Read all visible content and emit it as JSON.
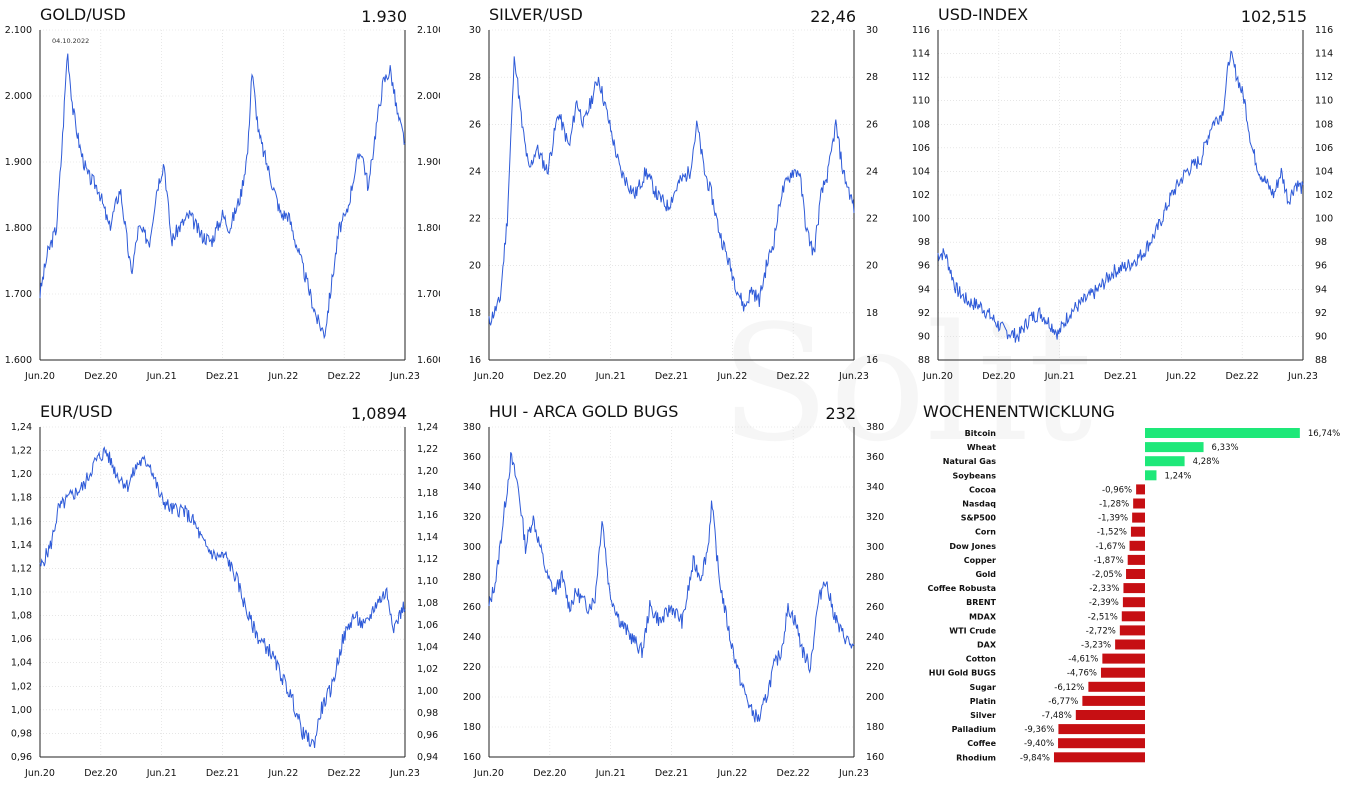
{
  "colors": {
    "line": "#2f5bd8",
    "grid": "#d8d8d8",
    "positive": "#1ee879",
    "negative": "#c60f13"
  },
  "watermark": "Solit",
  "chart_data": [
    {
      "type": "line",
      "id": "gold",
      "title": "GOLD/USD",
      "last": "1.930",
      "ylim": [
        1600,
        2100
      ],
      "yticks": [
        "1.600",
        "1.700",
        "1.800",
        "1.900",
        "2.000",
        "2.100"
      ],
      "xticks": [
        "Jun.20",
        "Dez.20",
        "Jun.21",
        "Dez.21",
        "Jun.22",
        "Dez.22",
        "Jun.23"
      ],
      "annotation": "04.10.2022",
      "anchors": [
        [
          0,
          1700
        ],
        [
          0.02,
          1760
        ],
        [
          0.045,
          1800
        ],
        [
          0.06,
          1920
        ],
        [
          0.075,
          2070
        ],
        [
          0.09,
          1980
        ],
        [
          0.11,
          1920
        ],
        [
          0.13,
          1880
        ],
        [
          0.16,
          1860
        ],
        [
          0.19,
          1800
        ],
        [
          0.22,
          1860
        ],
        [
          0.25,
          1730
        ],
        [
          0.27,
          1800
        ],
        [
          0.3,
          1780
        ],
        [
          0.32,
          1860
        ],
        [
          0.34,
          1900
        ],
        [
          0.36,
          1780
        ],
        [
          0.38,
          1800
        ],
        [
          0.41,
          1820
        ],
        [
          0.44,
          1790
        ],
        [
          0.47,
          1780
        ],
        [
          0.5,
          1820
        ],
        [
          0.52,
          1800
        ],
        [
          0.55,
          1850
        ],
        [
          0.57,
          1920
        ],
        [
          0.58,
          2040
        ],
        [
          0.6,
          1940
        ],
        [
          0.62,
          1900
        ],
        [
          0.64,
          1860
        ],
        [
          0.66,
          1820
        ],
        [
          0.68,
          1820
        ],
        [
          0.7,
          1780
        ],
        [
          0.72,
          1740
        ],
        [
          0.74,
          1700
        ],
        [
          0.76,
          1660
        ],
        [
          0.78,
          1640
        ],
        [
          0.8,
          1720
        ],
        [
          0.82,
          1800
        ],
        [
          0.84,
          1820
        ],
        [
          0.86,
          1880
        ],
        [
          0.88,
          1920
        ],
        [
          0.9,
          1860
        ],
        [
          0.92,
          1950
        ],
        [
          0.94,
          2020
        ],
        [
          0.96,
          2040
        ],
        [
          0.98,
          1970
        ],
        [
          1.0,
          1930
        ]
      ],
      "seed": 3
    },
    {
      "type": "line",
      "id": "silver",
      "title": "SILVER/USD",
      "last": "22,46",
      "ylim": [
        16,
        30
      ],
      "yticks": [
        "16",
        "18",
        "20",
        "22",
        "24",
        "26",
        "28",
        "30"
      ],
      "xticks": [
        "Jun.20",
        "Dez.20",
        "Jun.21",
        "Dez.21",
        "Jun.22",
        "Dez.22",
        "Jun.23"
      ],
      "anchors": [
        [
          0,
          17.6
        ],
        [
          0.03,
          18.5
        ],
        [
          0.05,
          22
        ],
        [
          0.07,
          29
        ],
        [
          0.09,
          26
        ],
        [
          0.11,
          24
        ],
        [
          0.13,
          25
        ],
        [
          0.16,
          24
        ],
        [
          0.19,
          26.5
        ],
        [
          0.22,
          25
        ],
        [
          0.24,
          27
        ],
        [
          0.26,
          26
        ],
        [
          0.3,
          28
        ],
        [
          0.33,
          26
        ],
        [
          0.36,
          24
        ],
        [
          0.4,
          23
        ],
        [
          0.43,
          24
        ],
        [
          0.46,
          23
        ],
        [
          0.49,
          22.5
        ],
        [
          0.52,
          23.5
        ],
        [
          0.55,
          24
        ],
        [
          0.57,
          26
        ],
        [
          0.59,
          24
        ],
        [
          0.61,
          23
        ],
        [
          0.63,
          21.5
        ],
        [
          0.65,
          20.5
        ],
        [
          0.68,
          19
        ],
        [
          0.7,
          18.2
        ],
        [
          0.72,
          19
        ],
        [
          0.74,
          18.5
        ],
        [
          0.76,
          20
        ],
        [
          0.78,
          21
        ],
        [
          0.8,
          23
        ],
        [
          0.83,
          24
        ],
        [
          0.85,
          24
        ],
        [
          0.87,
          21.5
        ],
        [
          0.89,
          20.5
        ],
        [
          0.91,
          23
        ],
        [
          0.93,
          24
        ],
        [
          0.95,
          26
        ],
        [
          0.97,
          24
        ],
        [
          1.0,
          22.46
        ]
      ],
      "seed": 11
    },
    {
      "type": "line",
      "id": "usd",
      "title": "USD-INDEX",
      "last": "102,515",
      "ylim": [
        88,
        116
      ],
      "yticks": [
        "88",
        "90",
        "92",
        "94",
        "96",
        "98",
        "100",
        "102",
        "104",
        "106",
        "108",
        "110",
        "112",
        "114",
        "116"
      ],
      "xticks": [
        "Jun.20",
        "Dez.20",
        "Jun.21",
        "Dez.21",
        "Jun.22",
        "Dez.22",
        "Jun.23"
      ],
      "anchors": [
        [
          0,
          97
        ],
        [
          0.02,
          97
        ],
        [
          0.05,
          94
        ],
        [
          0.08,
          93
        ],
        [
          0.12,
          92.5
        ],
        [
          0.15,
          91.5
        ],
        [
          0.18,
          90.5
        ],
        [
          0.22,
          90
        ],
        [
          0.25,
          91.5
        ],
        [
          0.28,
          92
        ],
        [
          0.31,
          91
        ],
        [
          0.33,
          90.2
        ],
        [
          0.36,
          92
        ],
        [
          0.4,
          93
        ],
        [
          0.44,
          94
        ],
        [
          0.48,
          95.5
        ],
        [
          0.52,
          96
        ],
        [
          0.56,
          97
        ],
        [
          0.6,
          99
        ],
        [
          0.64,
          102
        ],
        [
          0.68,
          104
        ],
        [
          0.72,
          105
        ],
        [
          0.75,
          108
        ],
        [
          0.78,
          109
        ],
        [
          0.8,
          114
        ],
        [
          0.82,
          112
        ],
        [
          0.84,
          110
        ],
        [
          0.86,
          106
        ],
        [
          0.88,
          104
        ],
        [
          0.9,
          103
        ],
        [
          0.92,
          102
        ],
        [
          0.94,
          104
        ],
        [
          0.96,
          101.5
        ],
        [
          0.98,
          103
        ],
        [
          1.0,
          102.5
        ]
      ],
      "seed": 7
    },
    {
      "type": "line",
      "id": "eur",
      "title": "EUR/USD",
      "last": "1,0894",
      "ylim": [
        0.96,
        1.24
      ],
      "yticks": [
        "0,96",
        "0,98",
        "1,00",
        "1,02",
        "1,04",
        "1,06",
        "1,08",
        "1,10",
        "1,12",
        "1,14",
        "1,16",
        "1,18",
        "1,20",
        "1,22",
        "1,24"
      ],
      "yticks_right": [
        "0,94",
        "0,96",
        "0,98",
        "1,00",
        "1,02",
        "1,04",
        "1,06",
        "1,08",
        "1,10",
        "1,12",
        "1,14",
        "1,16",
        "1,18",
        "1,20",
        "1,22",
        "1,24"
      ],
      "xticks": [
        "Jun.20",
        "Dez.20",
        "Jun.21",
        "Dez.21",
        "Jun.22",
        "Dez.22",
        "Jun.23"
      ],
      "anchors": [
        [
          0,
          1.12
        ],
        [
          0.03,
          1.14
        ],
        [
          0.05,
          1.17
        ],
        [
          0.08,
          1.18
        ],
        [
          0.12,
          1.19
        ],
        [
          0.15,
          1.21
        ],
        [
          0.18,
          1.22
        ],
        [
          0.21,
          1.2
        ],
        [
          0.24,
          1.19
        ],
        [
          0.27,
          1.21
        ],
        [
          0.3,
          1.21
        ],
        [
          0.33,
          1.18
        ],
        [
          0.36,
          1.17
        ],
        [
          0.39,
          1.17
        ],
        [
          0.42,
          1.16
        ],
        [
          0.45,
          1.14
        ],
        [
          0.48,
          1.13
        ],
        [
          0.51,
          1.13
        ],
        [
          0.54,
          1.11
        ],
        [
          0.57,
          1.08
        ],
        [
          0.6,
          1.06
        ],
        [
          0.63,
          1.05
        ],
        [
          0.66,
          1.03
        ],
        [
          0.69,
          1.01
        ],
        [
          0.72,
          0.98
        ],
        [
          0.75,
          0.97
        ],
        [
          0.77,
          1.0
        ],
        [
          0.8,
          1.02
        ],
        [
          0.83,
          1.06
        ],
        [
          0.86,
          1.08
        ],
        [
          0.89,
          1.07
        ],
        [
          0.92,
          1.09
        ],
        [
          0.95,
          1.1
        ],
        [
          0.97,
          1.07
        ],
        [
          1.0,
          1.09
        ]
      ],
      "seed": 5
    },
    {
      "type": "line",
      "id": "hui",
      "title": "HUI - ARCA GOLD BUGS",
      "last": "232",
      "ylim": [
        160,
        380
      ],
      "yticks": [
        "160",
        "180",
        "200",
        "220",
        "240",
        "260",
        "280",
        "300",
        "320",
        "340",
        "360",
        "380"
      ],
      "xticks": [
        "Jun.20",
        "Dez.20",
        "Jun.21",
        "Dez.21",
        "Jun.22",
        "Dez.22",
        "Jun.23"
      ],
      "anchors": [
        [
          0,
          260
        ],
        [
          0.02,
          280
        ],
        [
          0.04,
          320
        ],
        [
          0.06,
          360
        ],
        [
          0.08,
          340
        ],
        [
          0.1,
          300
        ],
        [
          0.12,
          320
        ],
        [
          0.14,
          300
        ],
        [
          0.16,
          280
        ],
        [
          0.18,
          270
        ],
        [
          0.2,
          280
        ],
        [
          0.22,
          260
        ],
        [
          0.24,
          270
        ],
        [
          0.27,
          260
        ],
        [
          0.29,
          265
        ],
        [
          0.31,
          320
        ],
        [
          0.33,
          270
        ],
        [
          0.36,
          250
        ],
        [
          0.39,
          240
        ],
        [
          0.42,
          230
        ],
        [
          0.44,
          260
        ],
        [
          0.47,
          250
        ],
        [
          0.5,
          260
        ],
        [
          0.53,
          250
        ],
        [
          0.56,
          290
        ],
        [
          0.58,
          280
        ],
        [
          0.6,
          300
        ],
        [
          0.61,
          330
        ],
        [
          0.63,
          280
        ],
        [
          0.66,
          240
        ],
        [
          0.69,
          210
        ],
        [
          0.72,
          190
        ],
        [
          0.74,
          185
        ],
        [
          0.76,
          200
        ],
        [
          0.78,
          220
        ],
        [
          0.8,
          230
        ],
        [
          0.82,
          260
        ],
        [
          0.84,
          250
        ],
        [
          0.86,
          230
        ],
        [
          0.88,
          220
        ],
        [
          0.9,
          260
        ],
        [
          0.92,
          280
        ],
        [
          0.94,
          260
        ],
        [
          0.96,
          245
        ],
        [
          1.0,
          232
        ]
      ],
      "seed": 13
    },
    {
      "type": "bar",
      "id": "week",
      "title": "WOCHENENTWICKLUNG",
      "orientation": "horizontal",
      "categories": [
        "Bitcoin",
        "Wheat",
        "Natural Gas",
        "Soybeans",
        "Cocoa",
        "Nasdaq",
        "S&P500",
        "Corn",
        "Dow Jones",
        "Copper",
        "Gold",
        "Coffee Robusta",
        "BRENT",
        "MDAX",
        "WTI Crude",
        "DAX",
        "Cotton",
        "HUI Gold BUGS",
        "Sugar",
        "Platin",
        "Silver",
        "Palladium",
        "Coffee",
        "Rhodium"
      ],
      "values": [
        16.74,
        6.33,
        4.28,
        1.24,
        -0.96,
        -1.28,
        -1.39,
        -1.52,
        -1.67,
        -1.87,
        -2.05,
        -2.33,
        -2.39,
        -2.51,
        -2.72,
        -3.23,
        -4.61,
        -4.76,
        -6.12,
        -6.77,
        -7.48,
        -9.36,
        -9.4,
        -9.84
      ],
      "labels": [
        "16,74%",
        "6,33%",
        "4,28%",
        "1,24%",
        "-0,96%",
        "-1,28%",
        "-1,39%",
        "-1,52%",
        "-1,67%",
        "-1,87%",
        "-2,05%",
        "-2,33%",
        "-2,39%",
        "-2,51%",
        "-2,72%",
        "-3,23%",
        "-4,61%",
        "-4,76%",
        "-6,12%",
        "-6,77%",
        "-7,48%",
        "-9,36%",
        "-9,40%",
        "-9,84%"
      ]
    }
  ]
}
